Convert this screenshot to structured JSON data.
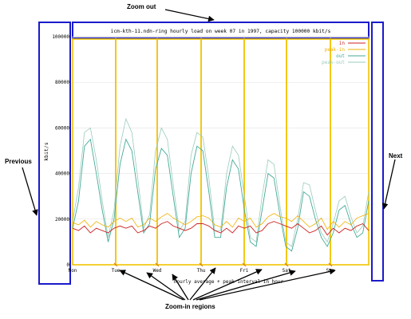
{
  "annotations": {
    "zoom_out": "Zoom out",
    "previous": "Previous",
    "next": "Next",
    "zoom_in": "Zoom-in regions"
  },
  "chart_data": {
    "type": "line",
    "title": "icm-kth-11.ndn-ring hourly load on week 07 in 1997, capacity 100000 kbit/s",
    "xlabel": "hourly average + peak interval in hour",
    "ylabel": "kbit/s",
    "ylim": [
      0,
      100000
    ],
    "yticks": [
      "0",
      "20000",
      "40000",
      "60000",
      "80000",
      "100000"
    ],
    "xticks": [
      "Mon",
      "Tue",
      "Wed",
      "Thu",
      "Fri",
      "Sat",
      "Sun"
    ],
    "legend_position": "top-right",
    "colors": {
      "in": "#cc2222",
      "peak_in": "#f0b000",
      "out": "#44aa99",
      "peak_out": "#99ccbb",
      "nav_border": "#1a1acc",
      "zoom_border": "#f2c400"
    },
    "series": [
      {
        "name": "in",
        "values": [
          16000,
          15000,
          17000,
          14000,
          16000,
          15000,
          14000,
          16000,
          17000,
          16000,
          17000,
          14000,
          15000,
          17000,
          16000,
          18000,
          19000,
          17000,
          16000,
          15000,
          16000,
          18000,
          18000,
          17000,
          15000,
          14000,
          16000,
          14000,
          17000,
          16000,
          17000,
          14000,
          15000,
          18000,
          19000,
          18000,
          17000,
          16000,
          18000,
          16000,
          14000,
          15000,
          17000,
          13000,
          16000,
          14000,
          16000,
          15000,
          17000,
          18000,
          15000
        ]
      },
      {
        "name": "peak-in",
        "values": [
          18500,
          17500,
          19500,
          16500,
          19000,
          17500,
          16500,
          19000,
          20500,
          19000,
          20500,
          16500,
          17500,
          20500,
          19000,
          21000,
          22500,
          20500,
          19000,
          17500,
          19000,
          21000,
          21500,
          20500,
          17500,
          16500,
          19000,
          16500,
          20500,
          19000,
          20500,
          16500,
          18000,
          21000,
          22500,
          21000,
          20500,
          19000,
          21500,
          19000,
          16500,
          18000,
          20500,
          15500,
          19000,
          16500,
          19000,
          17500,
          20500,
          21500,
          22500
        ]
      },
      {
        "name": "out",
        "values": [
          16000,
          28000,
          52000,
          55000,
          40000,
          24000,
          10000,
          20000,
          44000,
          55000,
          50000,
          32000,
          14000,
          18000,
          42000,
          51000,
          48000,
          30000,
          12000,
          16000,
          40000,
          52000,
          50000,
          32000,
          12000,
          12000,
          34000,
          46000,
          42000,
          24000,
          10000,
          8000,
          24000,
          40000,
          38000,
          22000,
          8000,
          6000,
          16000,
          32000,
          30000,
          20000,
          12000,
          8000,
          14000,
          24000,
          26000,
          18000,
          12000,
          14000,
          28000
        ]
      },
      {
        "name": "peak-out",
        "values": [
          19000,
          34000,
          58000,
          60000,
          46000,
          28000,
          12000,
          24000,
          52000,
          64000,
          58000,
          38000,
          16000,
          22000,
          50000,
          60000,
          55000,
          35000,
          15000,
          19000,
          48000,
          58000,
          56000,
          38000,
          15000,
          15000,
          40000,
          52000,
          48000,
          30000,
          12000,
          10000,
          30000,
          46000,
          44000,
          26000,
          10000,
          8000,
          20000,
          36000,
          35000,
          24000,
          14000,
          10000,
          18000,
          28000,
          30000,
          21000,
          14000,
          17000,
          32000
        ]
      }
    ]
  }
}
